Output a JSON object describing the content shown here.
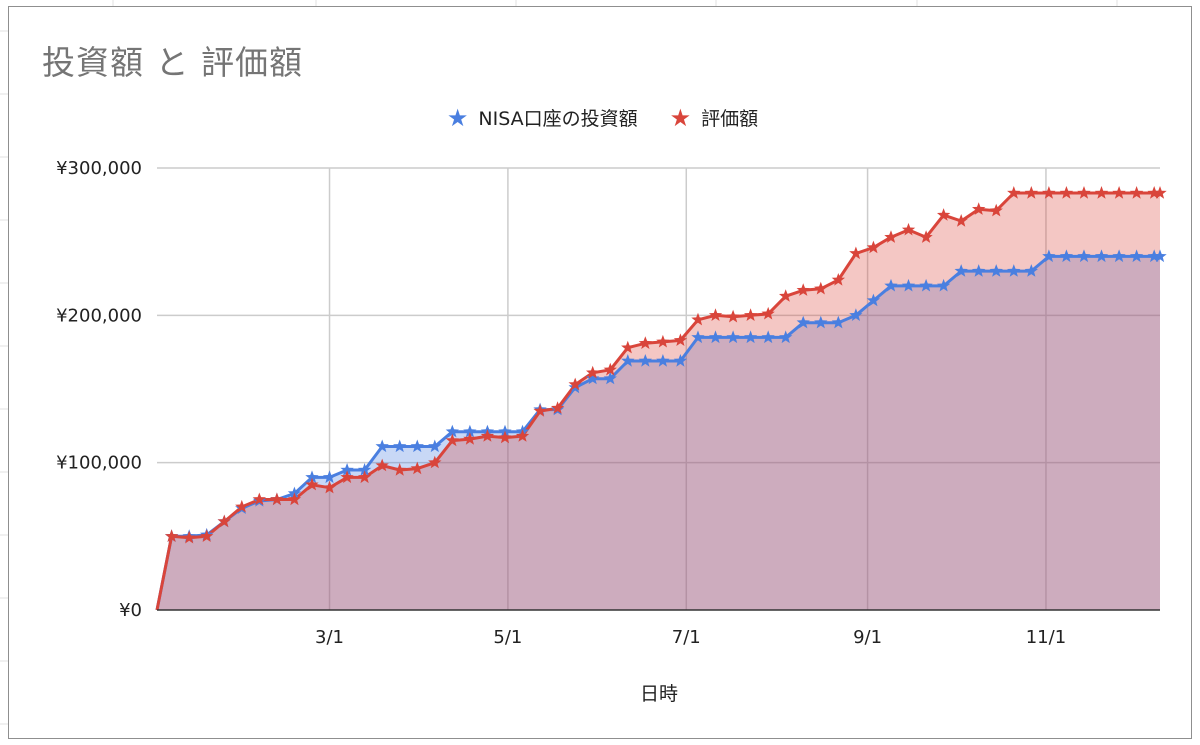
{
  "chart_title": "投資額 と 評価額",
  "colors": {
    "invest": "#4a7fe0",
    "value": "#d9453b",
    "grid": "#cccccc"
  },
  "chart_data": {
    "type": "area",
    "title": "投資額 と 評価額",
    "xlabel": "日時",
    "ylabel": "",
    "ylim": [
      0,
      300000
    ],
    "y_ticks": [
      "¥0",
      "¥100,000",
      "¥200,000",
      "¥300,000"
    ],
    "x_ticks": [
      "3/1",
      "5/1",
      "7/1",
      "9/1",
      "11/1"
    ],
    "grid": true,
    "legend_position": "top",
    "x_unit": "days since Jan 1 (approx.)",
    "x": [
      0,
      5,
      11,
      17,
      23,
      29,
      35,
      41,
      47,
      53,
      59,
      65,
      71,
      77,
      83,
      89,
      95,
      101,
      107,
      113,
      119,
      125,
      131,
      137,
      143,
      149,
      155,
      161,
      167,
      173,
      179,
      185,
      191,
      197,
      203,
      209,
      215,
      221,
      227,
      233,
      239,
      245,
      251,
      257,
      263,
      269,
      275,
      281,
      287,
      293,
      299,
      305,
      311,
      317,
      323,
      329,
      335,
      341,
      343
    ],
    "series": [
      {
        "name": "NISA口座の投資額",
        "icon": "star-icon",
        "values": [
          0,
          50000,
          50000,
          51000,
          60000,
          69000,
          74000,
          75000,
          79000,
          90000,
          90000,
          95000,
          95000,
          111000,
          111000,
          111000,
          111000,
          121000,
          121000,
          121000,
          121000,
          121000,
          136000,
          136000,
          151000,
          157000,
          157000,
          169000,
          169000,
          169000,
          169000,
          185000,
          185000,
          185000,
          185000,
          185000,
          185000,
          195000,
          195000,
          195000,
          200000,
          210000,
          220000,
          220000,
          220000,
          220000,
          230000,
          230000,
          230000,
          230000,
          230000,
          240000,
          240000,
          240000,
          240000,
          240000,
          240000,
          240000,
          240000
        ]
      },
      {
        "name": "評価額",
        "icon": "star-icon",
        "values": [
          0,
          50000,
          49000,
          50000,
          60000,
          70000,
          75000,
          75000,
          75000,
          85000,
          83000,
          90000,
          90000,
          98000,
          95000,
          96000,
          100000,
          115000,
          116000,
          118000,
          117000,
          118000,
          135000,
          137000,
          153000,
          161000,
          163000,
          178000,
          181000,
          182000,
          183000,
          197000,
          200000,
          199000,
          200000,
          201000,
          213000,
          217000,
          218000,
          224000,
          242000,
          246000,
          253000,
          258000,
          253000,
          268000,
          264000,
          272000,
          271000,
          283000,
          283000,
          283000,
          283000,
          283000,
          283000,
          283000,
          283000,
          283000,
          283000
        ]
      }
    ]
  }
}
